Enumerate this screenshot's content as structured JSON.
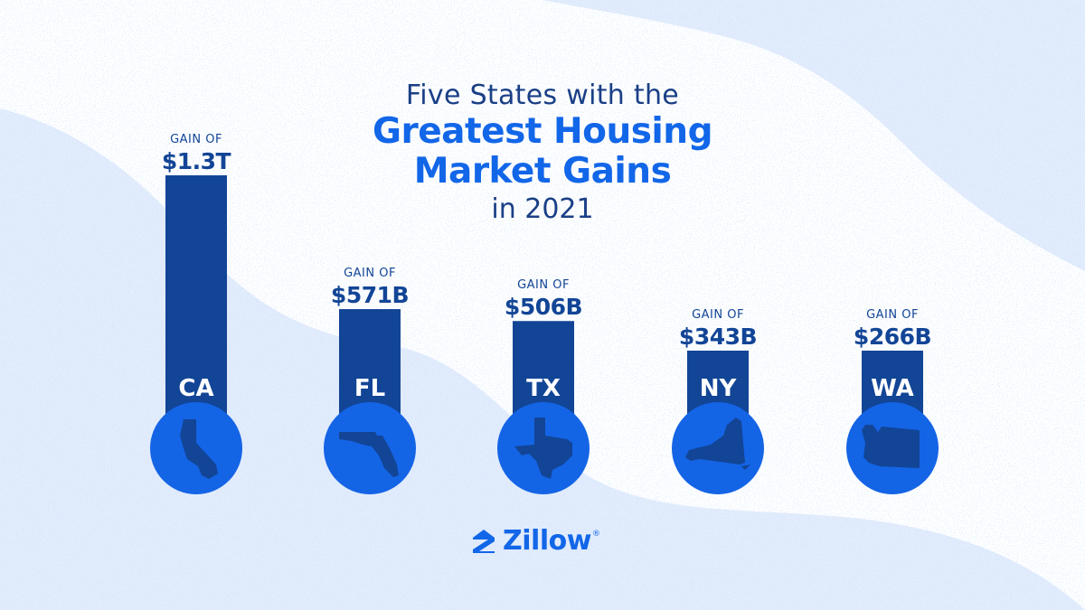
{
  "title": {
    "line1": "Five States with the",
    "line2": "Greatest Housing",
    "line3": "Market Gains",
    "line4": "in 2021"
  },
  "gain_prefix": "GAIN OF",
  "brand": {
    "name": "Zillow",
    "mark": "®"
  },
  "colors": {
    "bar": "#124596",
    "circle": "#1464e6",
    "speckle": "#a9c7f5",
    "title_light": "#1a3f86",
    "title_bold": "#1266e8"
  },
  "chart_data": {
    "type": "bar",
    "title": "Five States with the Greatest Housing Market Gains in 2021",
    "categories": [
      "CA",
      "FL",
      "TX",
      "NY",
      "WA"
    ],
    "values": [
      1300,
      571,
      506,
      343,
      266
    ],
    "value_labels": [
      "$1.3T",
      "$571B",
      "$506B",
      "$343B",
      "$266B"
    ],
    "icons": [
      "california-shape-icon",
      "florida-shape-icon",
      "texas-shape-icon",
      "new-york-shape-icon",
      "washington-shape-icon"
    ],
    "unit": "billions USD",
    "xlabel": "",
    "ylabel": "",
    "grid": false
  }
}
